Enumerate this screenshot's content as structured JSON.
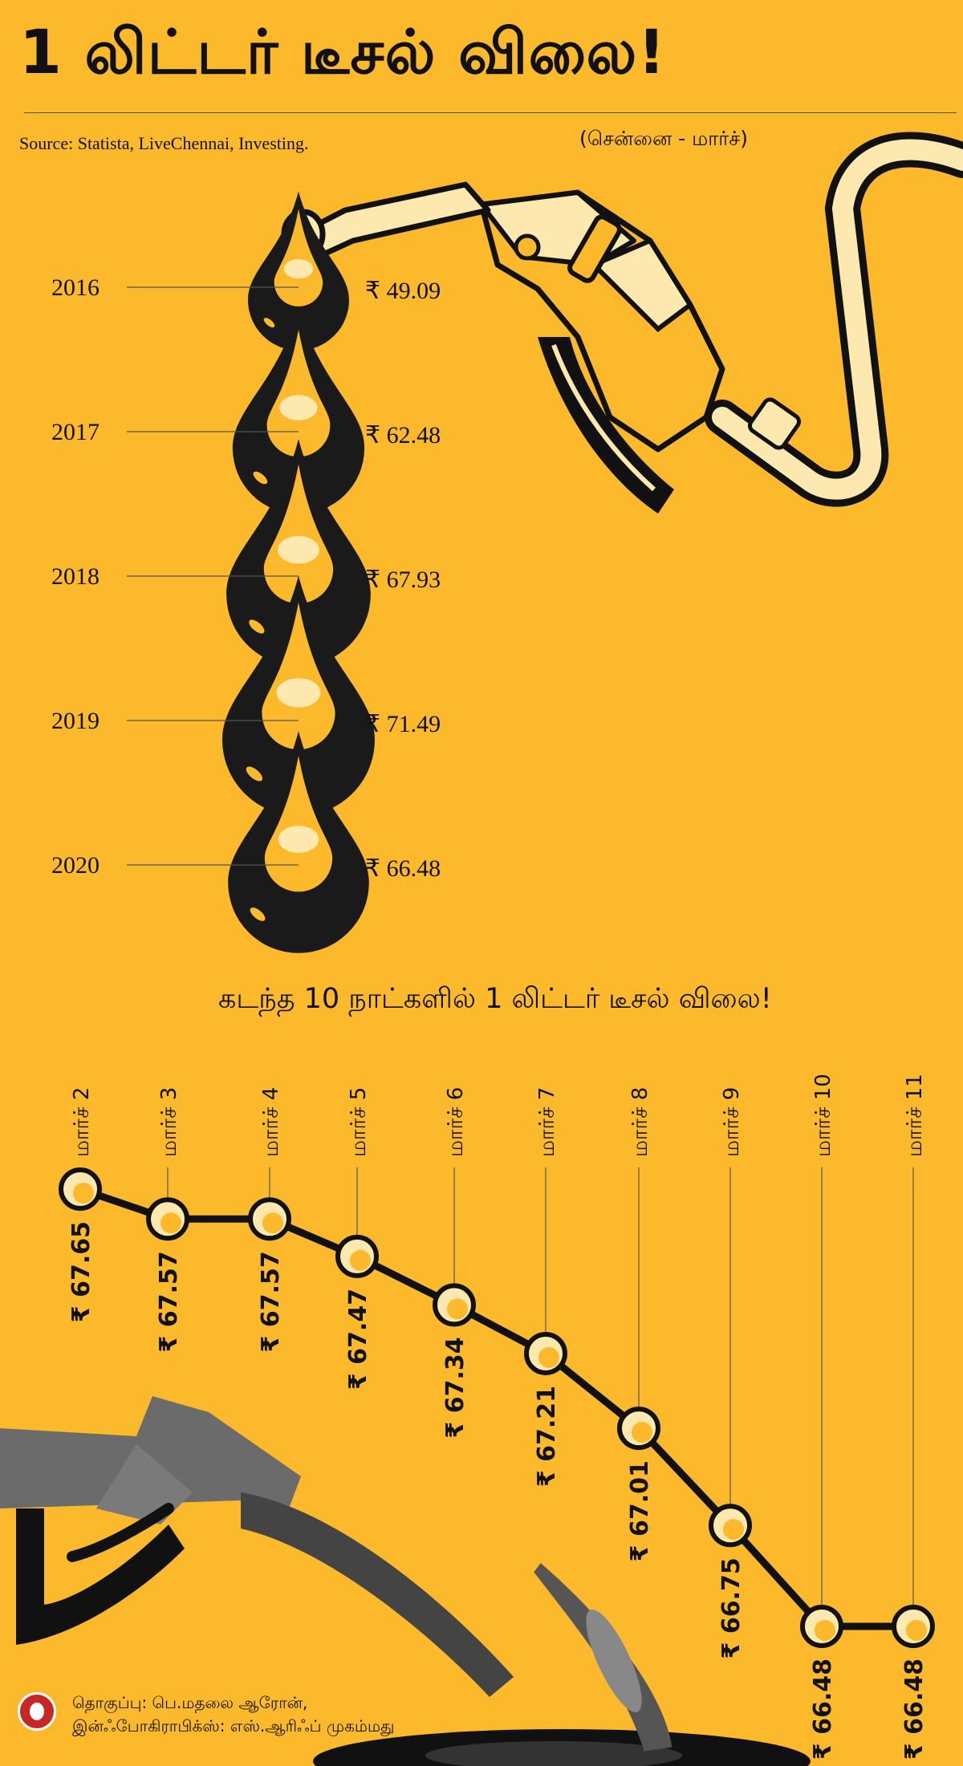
{
  "title": "1 லிட்டர் டீசல் விலை!",
  "source": "Source: Statista, LiveChennai, Investing.",
  "location_note": "(சென்னை - மார்ச்)",
  "subtitle": "கடந்த 10 நாட்களில் 1 லிட்டர் டீசல் விலை!",
  "credits": {
    "line1": "தொகுப்பு: பெ.மதலை ஆரோன்,",
    "line2": "இன்ஃபோகிராபிக்ஸ்: எஸ்.ஆரிஃப் முகம்மது"
  },
  "colors": {
    "background": "#fdb92c",
    "drop": "#1a1a1a",
    "line": "#111111",
    "pump_gray": "#6b6b6b"
  },
  "icons": [
    "fuel-nozzle-icon",
    "oil-drop-icon",
    "fuel-pump-icon"
  ],
  "chart_data": [
    {
      "type": "bar",
      "categories": [
        "2016",
        "2017",
        "2018",
        "2019",
        "2020"
      ],
      "values": [
        49.09,
        62.48,
        67.93,
        71.49,
        66.48
      ],
      "value_labels": [
        "₹ 49.09",
        "₹ 62.48",
        "₹ 67.93",
        "₹ 71.49",
        "₹ 66.48"
      ],
      "unit": "₹"
    },
    {
      "type": "line",
      "x": [
        "மார்ச் 2",
        "மார்ச் 3",
        "மார்ச் 4",
        "மார்ச் 5",
        "மார்ச் 6",
        "மார்ச் 7",
        "மார்ச் 8",
        "மார்ச் 9",
        "மார்ச் 10",
        "மார்ச் 11"
      ],
      "y": [
        67.65,
        67.57,
        67.57,
        67.47,
        67.34,
        67.21,
        67.01,
        66.75,
        66.48,
        66.48
      ],
      "value_labels": [
        "₹ 67.65",
        "₹ 67.57",
        "₹ 67.57",
        "₹ 67.47",
        "₹ 67.34",
        "₹ 67.21",
        "₹ 67.01",
        "₹ 66.75",
        "₹ 66.48",
        "₹ 66.48"
      ],
      "unit": "₹"
    }
  ]
}
